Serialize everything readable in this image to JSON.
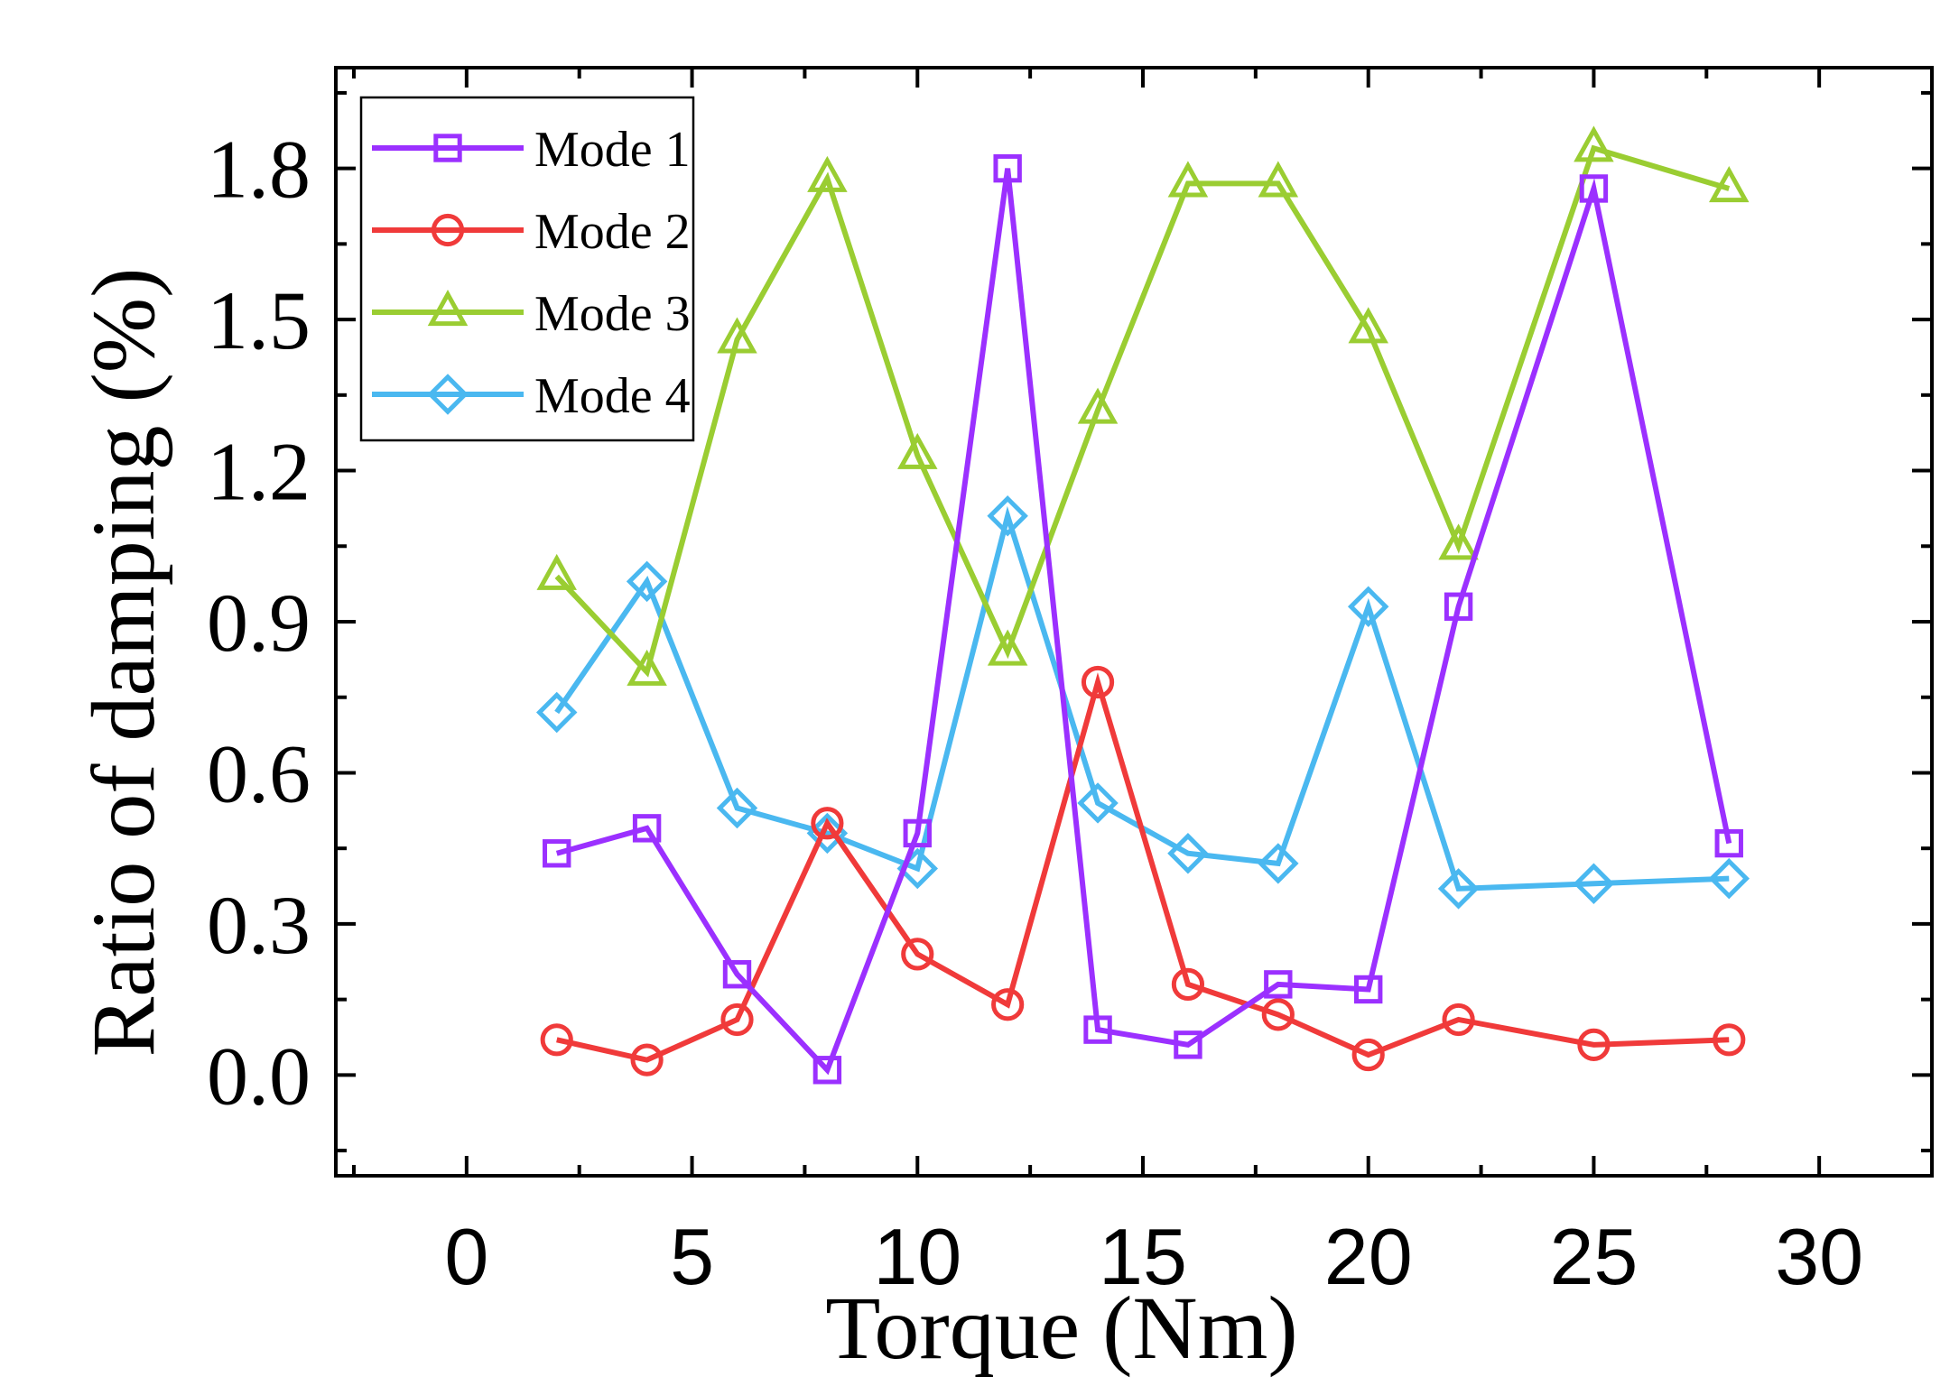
{
  "chart_data": {
    "type": "line",
    "title": "",
    "xlabel": "Torque (Nm)",
    "ylabel": "Ratio of damping (%)",
    "xlim": [
      -2.9,
      32.5
    ],
    "ylim": [
      -0.2,
      2.0
    ],
    "xticks": [
      0,
      5,
      10,
      15,
      20,
      25,
      30
    ],
    "xtick_labels": [
      "0",
      "5",
      "10",
      "15",
      "20",
      "25",
      "30"
    ],
    "yticks": [
      0.0,
      0.3,
      0.6,
      0.9,
      1.2,
      1.5,
      1.8
    ],
    "ytick_labels": [
      "0.0",
      "0.3",
      "0.6",
      "0.9",
      "1.2",
      "1.5",
      "1.8"
    ],
    "grid": false,
    "legend_position": "top-left",
    "x": [
      2,
      4,
      6,
      8,
      10,
      12,
      14,
      16,
      18,
      20,
      22,
      25,
      28
    ],
    "series": [
      {
        "name": "Mode 1",
        "color": "#9b30ff",
        "marker": "square",
        "values": [
          0.44,
          0.49,
          0.2,
          0.01,
          0.48,
          1.8,
          0.09,
          0.06,
          0.18,
          0.17,
          0.93,
          1.76,
          0.46
        ]
      },
      {
        "name": "Mode 2",
        "color": "#f03a3a",
        "marker": "circle",
        "values": [
          0.07,
          0.03,
          0.11,
          0.5,
          0.24,
          0.14,
          0.78,
          0.18,
          0.12,
          0.04,
          0.11,
          0.06,
          0.07
        ]
      },
      {
        "name": "Mode 3",
        "color": "#9acd32",
        "marker": "triangle",
        "values": [
          0.99,
          0.8,
          1.46,
          1.78,
          1.23,
          0.84,
          1.32,
          1.77,
          1.77,
          1.48,
          1.05,
          1.84,
          1.76
        ]
      },
      {
        "name": "Mode 4",
        "color": "#4ab8f0",
        "marker": "diamond",
        "values": [
          0.72,
          0.98,
          0.53,
          0.48,
          0.41,
          1.11,
          0.54,
          0.44,
          0.42,
          0.93,
          0.37,
          0.38,
          0.39
        ]
      }
    ]
  }
}
